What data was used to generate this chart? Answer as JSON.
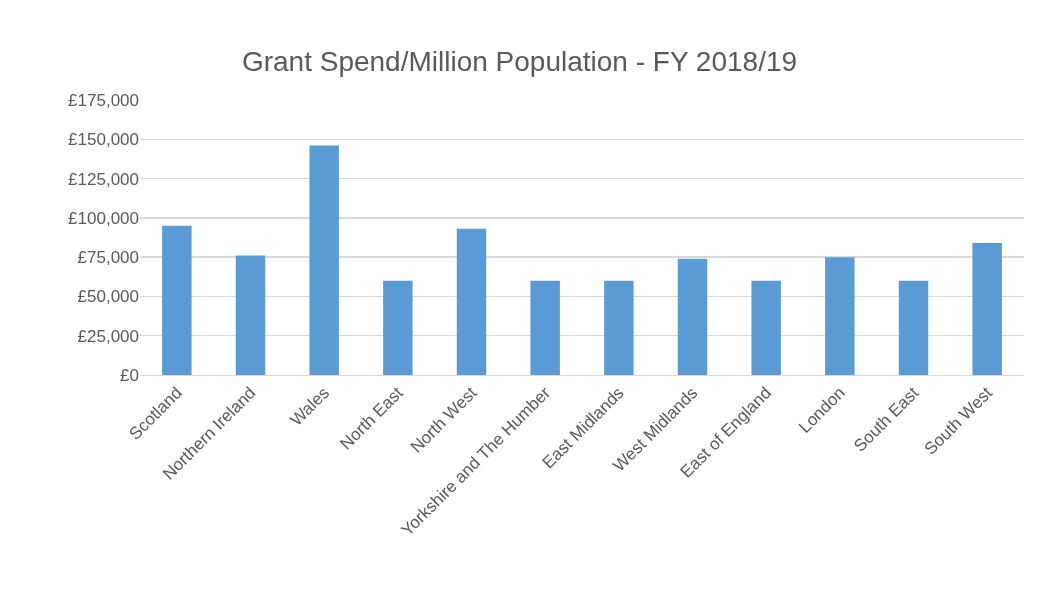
{
  "chart_data": {
    "type": "bar",
    "title": "Grant Spend/Million Population - FY 2018/19",
    "categories": [
      "Scotland",
      "Northern Ireland",
      "Wales",
      "North East",
      "North West",
      "Yorkshire and The Humber",
      "East Midlands",
      "West Midlands",
      "East of England",
      "London",
      "South East",
      "South West"
    ],
    "values": [
      95000,
      76000,
      146000,
      60000,
      93000,
      60000,
      60000,
      74000,
      60000,
      75000,
      60000,
      84000
    ],
    "color": "#5b9bd5",
    "ylim": [
      0,
      175000
    ],
    "yticks": [
      {
        "value": 0,
        "label": "£0"
      },
      {
        "value": 25000,
        "label": "£25,000"
      },
      {
        "value": 50000,
        "label": "£50,000"
      },
      {
        "value": 75000,
        "label": "£75,000"
      },
      {
        "value": 100000,
        "label": "£100,000"
      },
      {
        "value": 125000,
        "label": "£125,000"
      },
      {
        "value": 150000,
        "label": "£150,000"
      },
      {
        "value": 175000,
        "label": "£175,000"
      }
    ],
    "grid": "y",
    "legend": false
  }
}
